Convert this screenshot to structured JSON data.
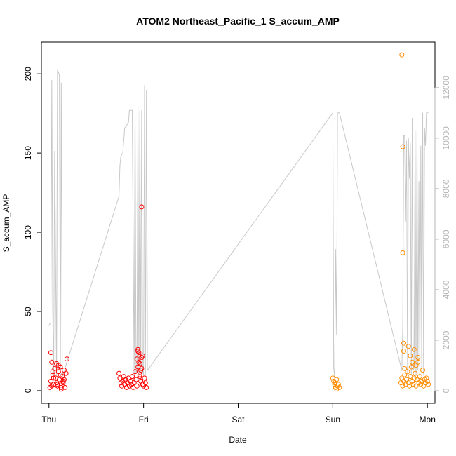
{
  "chart_data": {
    "type": "scatter",
    "title": "ATOM2 Northeast_Pacific_1 S_accum_AMP",
    "xlabel": "Date",
    "ylabel": "S_accum_AMP",
    "x_tick_labels": [
      "Thu",
      "Fri",
      "Sat",
      "Sun",
      "Mon"
    ],
    "xlim_days": [
      -0.08,
      4.08
    ],
    "ylim": [
      -8,
      220
    ],
    "y_ticks": [
      0,
      50,
      100,
      150,
      200
    ],
    "y2lim": [
      -500,
      13800
    ],
    "y2_ticks": [
      0,
      2000,
      4000,
      6000,
      8000,
      10000,
      12000
    ],
    "grid": false,
    "legend": "none",
    "colors": {
      "series_a": "#ff0000",
      "series_b": "#ff8c00",
      "secondary_line": "#c8c8c8",
      "axis": "#000000",
      "right_axis": "#b5b5b5"
    },
    "series": [
      {
        "x": [
          0.01,
          0.02,
          0.02,
          0.03,
          0.04,
          0.05,
          0.06,
          0.07,
          0.08,
          0.09,
          0.1,
          0.11,
          0.12,
          0.13,
          0.14,
          0.15,
          0.16,
          0.17,
          0.18,
          0.19,
          0.03,
          0.05,
          0.08,
          0.1,
          0.12,
          0.15,
          0.04,
          0.09,
          0.13,
          0.16,
          0.74,
          0.75,
          0.76,
          0.77,
          0.78,
          0.79,
          0.8,
          0.81,
          0.82,
          0.83,
          0.84,
          0.85,
          0.86,
          0.87,
          0.88,
          0.89,
          0.9,
          0.91,
          0.92,
          0.93,
          0.94,
          0.95,
          0.96,
          0.97,
          0.98,
          0.99,
          1.0,
          1.01,
          1.02,
          1.03,
          0.93,
          0.94,
          0.95,
          0.96,
          0.97,
          0.98,
          0.94,
          0.96,
          0.98,
          0.99
        ],
        "y": [
          2,
          6,
          24,
          18,
          10,
          4,
          14,
          8,
          17,
          3,
          12,
          7,
          15,
          1,
          9,
          5,
          13,
          2,
          11,
          20,
          3,
          8,
          5,
          16,
          10,
          6,
          12,
          4,
          2,
          7,
          11,
          8,
          5,
          3,
          6,
          9,
          4,
          7,
          2,
          5,
          8,
          3,
          6,
          4,
          9,
          2,
          5,
          12,
          7,
          3,
          25,
          18,
          10,
          6,
          14,
          22,
          3,
          8,
          5,
          2,
          20,
          15,
          24,
          9,
          13,
          116,
          26,
          17,
          21,
          4
        ]
      },
      {
        "x": [
          3.0,
          3.01,
          3.02,
          3.03,
          3.04,
          3.05,
          3.02,
          3.04,
          3.06,
          3.07,
          3.72,
          3.73,
          3.74,
          3.75,
          3.76,
          3.77,
          3.78,
          3.79,
          3.8,
          3.81,
          3.82,
          3.83,
          3.84,
          3.85,
          3.86,
          3.87,
          3.88,
          3.89,
          3.9,
          3.91,
          3.92,
          3.93,
          3.94,
          3.95,
          3.96,
          3.97,
          3.98,
          3.99,
          4.0,
          4.01,
          3.73,
          3.74,
          3.74,
          3.75,
          3.75,
          3.76,
          3.8,
          3.82,
          3.84,
          3.86,
          3.88,
          3.9
        ],
        "y": [
          8,
          6,
          4,
          2,
          7,
          3,
          5,
          1,
          4,
          2,
          5,
          8,
          3,
          6,
          10,
          4,
          7,
          12,
          5,
          3,
          9,
          15,
          6,
          4,
          8,
          11,
          3,
          7,
          18,
          5,
          9,
          4,
          6,
          13,
          3,
          7,
          5,
          8,
          6,
          4,
          212,
          154,
          87,
          30,
          25,
          14,
          28,
          22,
          18,
          26,
          16,
          21
        ]
      }
    ],
    "secondary_series": {
      "name": "",
      "x": [
        0.0,
        0.02,
        0.03,
        0.04,
        0.05,
        0.06,
        0.08,
        0.09,
        0.1,
        0.11,
        0.12,
        0.13,
        0.14,
        0.15,
        0.16,
        0.17,
        0.74,
        0.75,
        0.76,
        0.78,
        0.8,
        0.84,
        0.85,
        0.86,
        0.88,
        0.9,
        0.91,
        0.92,
        0.93,
        0.94,
        0.95,
        0.96,
        0.97,
        0.98,
        0.99,
        1.0,
        1.01,
        1.02,
        1.03,
        1.04,
        1.04,
        3.0,
        3.01,
        3.02,
        3.03,
        3.04,
        3.05,
        3.06,
        3.07,
        3.73,
        3.74,
        3.75,
        3.76,
        3.77,
        3.78,
        3.79,
        3.8,
        3.81,
        3.82,
        3.83,
        3.84,
        3.85,
        3.86,
        3.87,
        3.88,
        3.89,
        3.9,
        3.91,
        3.92,
        3.93,
        3.94,
        3.95,
        3.96,
        3.97,
        3.98,
        3.99,
        4.0,
        4.01
      ],
      "y": [
        2600,
        2700,
        12300,
        3000,
        600,
        9500,
        600,
        12700,
        12600,
        12500,
        600,
        12200,
        800,
        600,
        700,
        900,
        7700,
        8900,
        9300,
        9400,
        10400,
        10600,
        11100,
        11100,
        11100,
        600,
        11100,
        700,
        800,
        11100,
        600,
        11100,
        700,
        11100,
        800,
        600,
        12100,
        600,
        11900,
        2800,
        800,
        11000,
        900,
        500,
        5600,
        2200,
        11000,
        11000,
        11000,
        800,
        2600,
        10100,
        10100,
        6700,
        9900,
        700,
        10000,
        8400,
        9800,
        600,
        10800,
        800,
        900,
        10300,
        600,
        10300,
        800,
        8300,
        600,
        9700,
        900,
        11000,
        600,
        10400,
        9700,
        11000,
        11000,
        11000
      ]
    }
  }
}
